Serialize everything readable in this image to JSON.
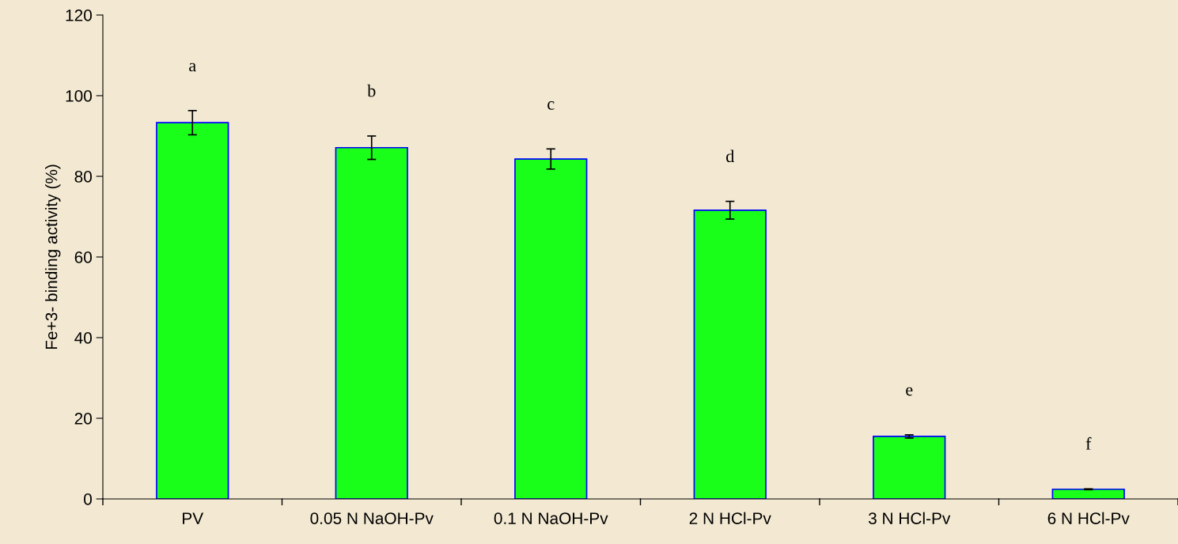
{
  "chart_data": {
    "type": "bar",
    "ylabel": "Fe+3- binding activity (%)",
    "categories": [
      "PV",
      "0.05 N NaOH-Pv",
      "0.1 N NaOH-Pv",
      "2 N HCl-Pv",
      "3 N HCl-Pv",
      "6 N HCl-Pv"
    ],
    "values": [
      93.3,
      87.1,
      84.3,
      71.6,
      15.5,
      2.4
    ],
    "errors": [
      3,
      2.9,
      2.5,
      2.2,
      0.4,
      0.1
    ],
    "color": "#1aff1a",
    "ylim": [
      0,
      120
    ],
    "yticks": [
      0,
      20,
      40,
      60,
      80,
      100,
      120
    ],
    "grid": false,
    "legend": false,
    "annotations": [
      "a",
      "b",
      "c",
      "d",
      "e",
      "f"
    ]
  }
}
